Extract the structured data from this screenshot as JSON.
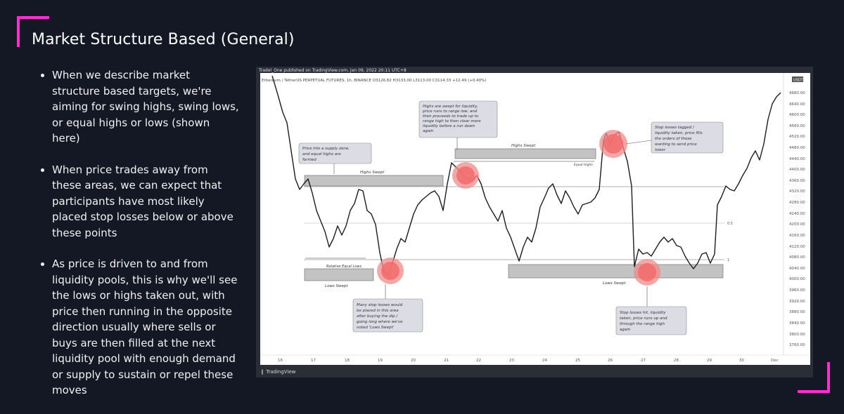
{
  "slide": {
    "title": "Market Structure Based (General)",
    "accent_color": "#ff2fd0",
    "bullets": [
      "When we describe market structure based targets, we're aiming for swing highs, swing lows, or equal highs or lows (shown here)",
      "When price trades away from these areas, we can expect that participants have most likely placed stop losses below or above these points",
      "As price is driven to and from liquidity pools, this is why we'll see the lows or highs taken out, with price then running in the opposite direction usually where sells or buys are then filled at the next liquidity pool with enough demand or supply to sustain or repel these moves"
    ]
  },
  "chart": {
    "published_line": "Tradel_One published on TradingView.com, Jan 09, 2022 20:11 UTC+8",
    "symbol_line": "Ethereum / TetherUS PERPETUAL FUTURES, 1h, BINANCE  O3126.82  H3133.00  L3113.00  C3114.33  +12.49 (+0.40%)",
    "currency": "USDT",
    "footer_logo": "TradingView",
    "y_ticks": [
      "4680.00",
      "4640.00",
      "4600.00",
      "4560.00",
      "4520.00",
      "4480.00",
      "4440.00",
      "4400.00",
      "4360.00",
      "4320.00",
      "4280.00",
      "4240.00",
      "4200.00",
      "4160.00",
      "4120.00",
      "4080.00",
      "4040.00",
      "4000.00",
      "3960.00",
      "3920.00",
      "3880.00",
      "3840.00",
      "3800.00",
      "3760.00"
    ],
    "x_ticks": [
      "16",
      "17",
      "18",
      "19",
      "20",
      "21",
      "22",
      "23",
      "24",
      "25",
      "26",
      "27",
      "28",
      "29",
      "30",
      "Dec"
    ],
    "fib_labels": [
      "0.5",
      "1"
    ],
    "zone_labels": {
      "highs_swept_left": "Highs Swept",
      "highs_swept_mid": "Highs Swept",
      "equal_highs": "Equal Highs",
      "relative_equal_lows": "Relative Equal Lows",
      "lows_swept_left": "Lows Swept",
      "lows_swept_right": "Lows Swept"
    },
    "notes": {
      "supply_zone": [
        "Price hits a supply zone,",
        "and equal highs are",
        "formed"
      ],
      "highs_swept": [
        "Highs are swept for liquidity,",
        "price runs to range low, and",
        "then proceeds to trade up to",
        "range high to then clear more",
        "liquidity before a run down",
        "again"
      ],
      "stop_losses_tagged": [
        "Stop losses tagged /",
        "liquidity taken, price fills",
        "the orders of those",
        "wanting to send price",
        "lower"
      ],
      "many_stop_losses": [
        "Many stop losses would",
        "be placed in this area",
        "after buying the dip /",
        "going long where we've",
        "noted 'Lows Swept'"
      ],
      "stop_losses_hit": [
        "Stop losses hit, liquidity",
        "taken, price runs up and",
        "through the range high",
        "again"
      ]
    }
  }
}
